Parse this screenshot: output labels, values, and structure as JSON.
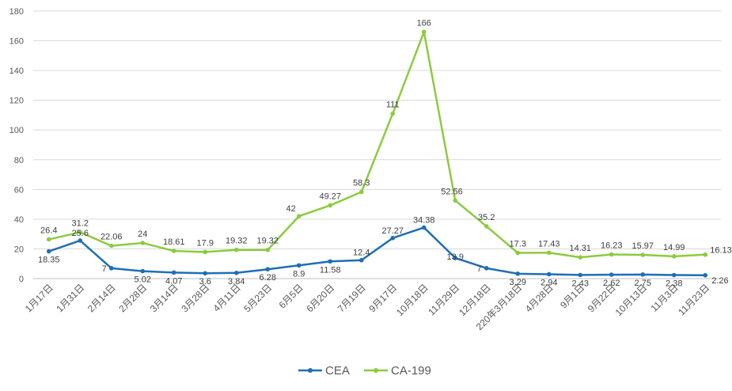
{
  "chart_data": {
    "type": "line",
    "title": "",
    "xlabel": "",
    "ylabel": "",
    "ylim": [
      0,
      180
    ],
    "yticks": [
      0,
      20,
      40,
      60,
      80,
      100,
      120,
      140,
      160,
      180
    ],
    "grid": true,
    "legend_position": "bottom",
    "categories": [
      "1月17日",
      "1月31日",
      "2月14日",
      "2月28日",
      "3月14日",
      "3月28日",
      "4月11日",
      "5月23日",
      "6月5日",
      "6月20日",
      "7月19日",
      "9月17日",
      "10月18日",
      "11月29日",
      "12月18日",
      "220年3月18日",
      "4月28日",
      "9月1日",
      "9月22日",
      "10月13日",
      "11月3日",
      "11月23日"
    ],
    "series": [
      {
        "name": "CEA",
        "color": "#1f6fb5",
        "values": [
          18.35,
          25.6,
          7,
          5.02,
          4.07,
          3.6,
          3.84,
          6.28,
          8.9,
          11.58,
          12.4,
          27.27,
          34.38,
          13.9,
          7,
          3.29,
          2.94,
          2.43,
          2.62,
          2.75,
          2.38,
          2.26
        ],
        "labels": [
          "18.35",
          "25.6",
          "7",
          "5.02",
          "4.07",
          "3.6",
          "3.84",
          "6.28",
          "8.9",
          "11.58",
          "12.4",
          "27.27",
          "34.38",
          "13.9",
          "7",
          "3.29",
          "2.94",
          "2.43",
          "2.62",
          "2.75",
          "2.38",
          "2.26"
        ]
      },
      {
        "name": "CA-199",
        "color": "#8ccb3f",
        "values": [
          26.4,
          31.2,
          22.06,
          24,
          18.61,
          17.9,
          19.32,
          19.32,
          42,
          49.27,
          58.3,
          111,
          166,
          52.56,
          35.2,
          17.3,
          17.43,
          14.31,
          16.23,
          15.97,
          14.99,
          16.13
        ],
        "labels": [
          "26.4",
          "31.2",
          "22.06",
          "24",
          "18.61",
          "17.9",
          "19.32",
          "19.32",
          "42",
          "49.27",
          "58.3",
          "111",
          "166",
          "52.56",
          "35.2",
          "17.3",
          "17.43",
          "14.31",
          "16.23",
          "15.97",
          "14.99",
          "16.13"
        ]
      }
    ]
  }
}
